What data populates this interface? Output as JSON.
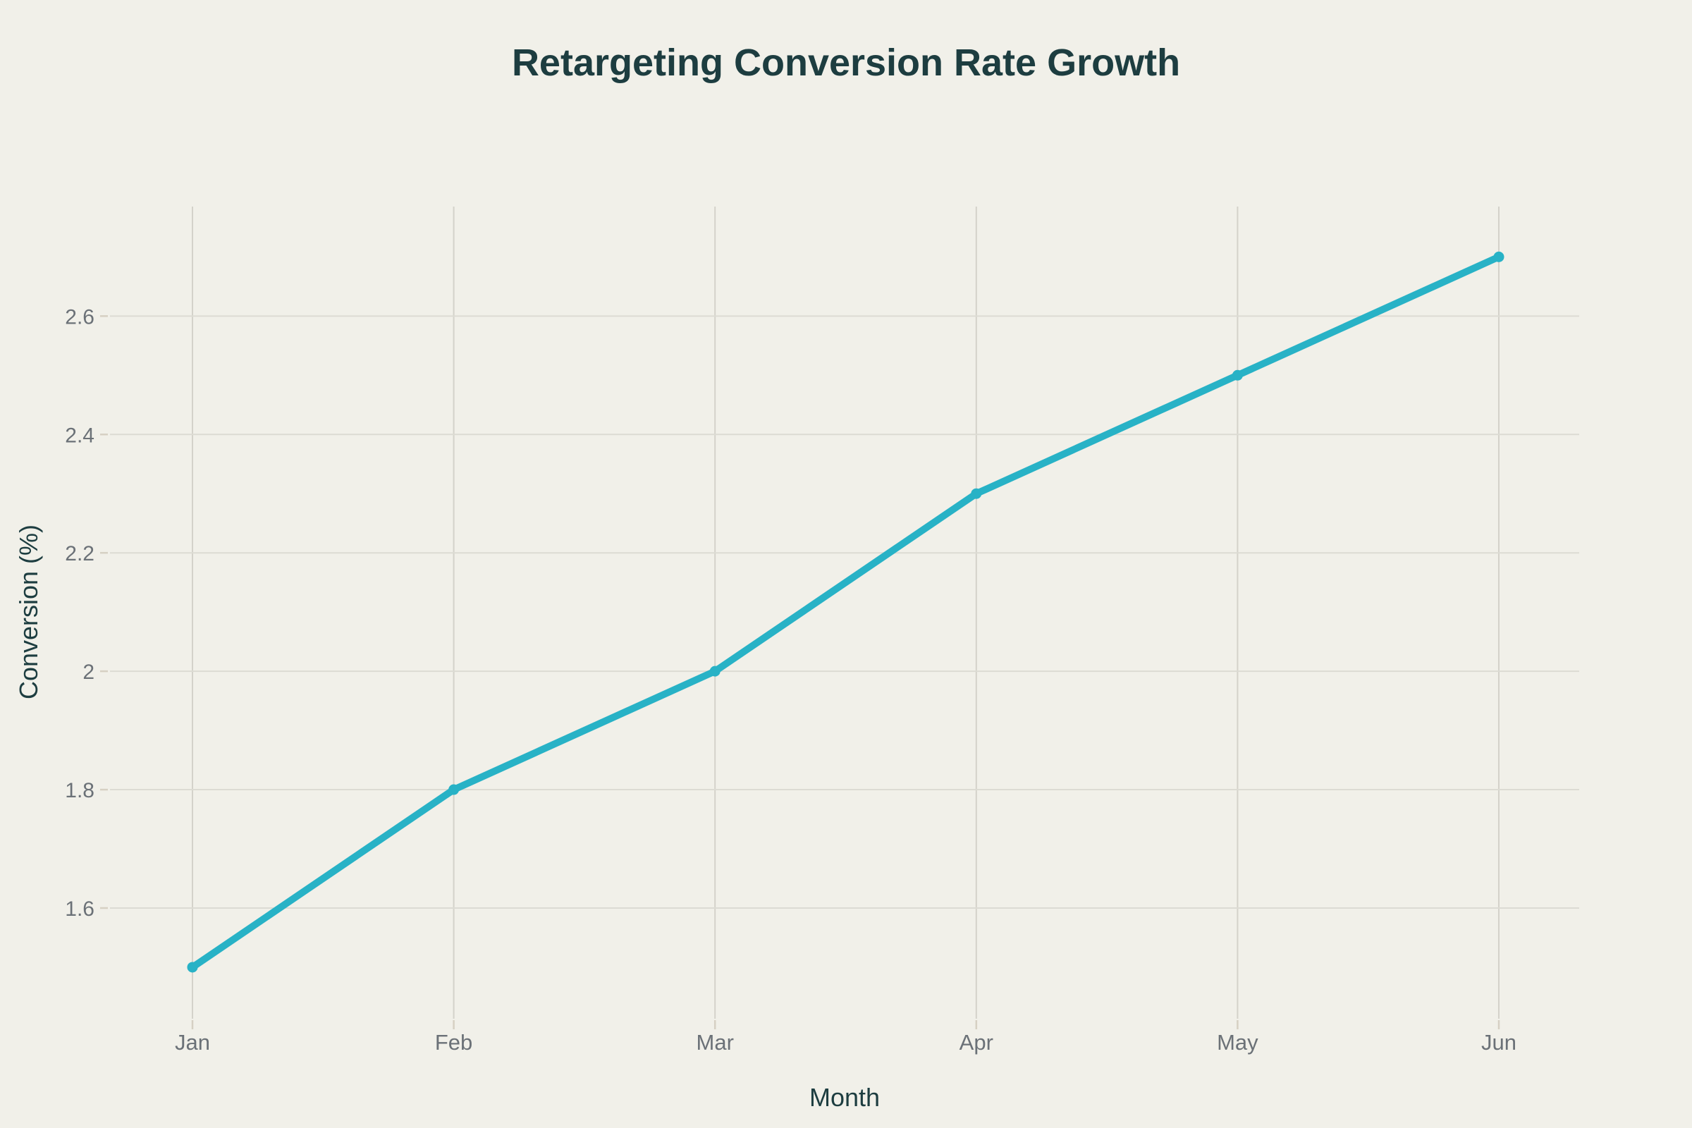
{
  "page": {
    "background": "#f1f0e9"
  },
  "chart_data": {
    "type": "line",
    "title": "Retargeting Conversion Rate Growth",
    "xlabel": "Month",
    "ylabel": "Conversion (%)",
    "categories": [
      "Jan",
      "Feb",
      "Mar",
      "Apr",
      "May",
      "Jun"
    ],
    "series": [
      {
        "values": [
          1.5,
          1.8,
          2.0,
          2.3,
          2.5,
          2.7
        ],
        "color": "#28b2c6",
        "line_width": 10,
        "marker": "circle",
        "marker_size": 15
      }
    ],
    "yticks": [
      1.6,
      1.8,
      2,
      2.2,
      2.4,
      2.6
    ],
    "ylim": [
      1.413,
      2.785
    ],
    "grid": "both",
    "legend": false
  },
  "style": {
    "title_color": "#1d3d40",
    "axis_title_color": "#1d3d40",
    "tick_label_color": "#6b7177",
    "grid_color_h": "#dcdbd3",
    "grid_color_v": "#d4d2ca",
    "tick_mark_color": "#d6d0c3",
    "tick_label_size": 30
  }
}
